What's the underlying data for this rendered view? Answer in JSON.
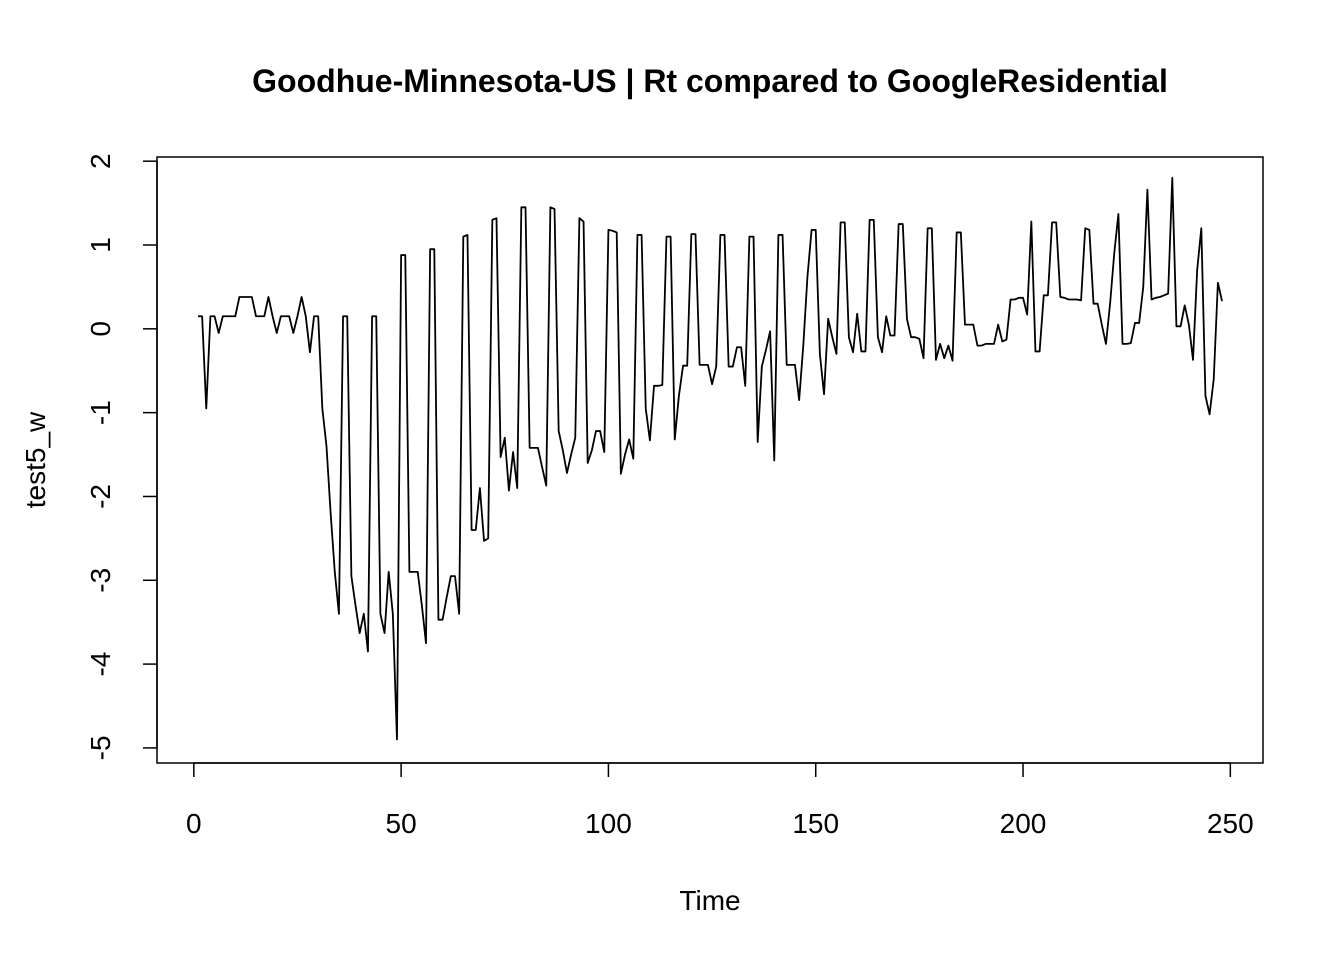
{
  "chart_data": {
    "type": "line",
    "title": "Goodhue-Minnesota-US | Rt compared to GoogleResidential",
    "x_label": "Time",
    "y_label": "test5_w",
    "color": "#000000",
    "x": [
      1,
      2,
      3,
      4,
      5,
      6,
      7,
      8,
      9,
      10,
      11,
      12,
      13,
      14,
      15,
      16,
      17,
      18,
      19,
      20,
      21,
      22,
      23,
      24,
      25,
      26,
      27,
      28,
      29,
      30,
      31,
      32,
      33,
      34,
      35,
      36,
      37,
      38,
      39,
      40,
      41,
      42,
      43,
      44,
      45,
      46,
      47,
      48,
      49,
      50,
      51,
      52,
      53,
      54,
      55,
      56,
      57,
      58,
      59,
      60,
      61,
      62,
      63,
      64,
      65,
      66,
      67,
      68,
      69,
      70,
      71,
      72,
      73,
      74,
      75,
      76,
      77,
      78,
      79,
      80,
      81,
      82,
      83,
      84,
      85,
      86,
      87,
      88,
      89,
      90,
      91,
      92,
      93,
      94,
      95,
      96,
      97,
      98,
      99,
      100,
      101,
      102,
      103,
      104,
      105,
      106,
      107,
      108,
      109,
      110,
      111,
      112,
      113,
      114,
      115,
      116,
      117,
      118,
      119,
      120,
      121,
      122,
      123,
      124,
      125,
      126,
      127,
      128,
      129,
      130,
      131,
      132,
      133,
      134,
      135,
      136,
      137,
      138,
      139,
      140,
      141,
      142,
      143,
      144,
      145,
      146,
      147,
      148,
      149,
      150,
      151,
      152,
      153,
      154,
      155,
      156,
      157,
      158,
      159,
      160,
      161,
      162,
      163,
      164,
      165,
      166,
      167,
      168,
      169,
      170,
      171,
      172,
      173,
      174,
      175,
      176,
      177,
      178,
      179,
      180,
      181,
      182,
      183,
      184,
      185,
      186,
      187,
      188,
      189,
      190,
      191,
      192,
      193,
      194,
      195,
      196,
      197,
      198,
      199,
      200,
      201,
      202,
      203,
      204,
      205,
      206,
      207,
      208,
      209,
      210,
      211,
      212,
      213,
      214,
      215,
      216,
      217,
      218,
      219,
      220,
      221,
      222,
      223,
      224,
      225,
      226,
      227,
      228,
      229,
      230,
      231,
      232,
      233,
      234,
      235,
      236,
      237,
      238,
      239,
      240,
      241,
      242,
      243,
      244,
      245,
      246,
      247,
      248
    ],
    "values": [
      0.15,
      0.15,
      -0.95,
      0.15,
      0.15,
      -0.05,
      0.15,
      0.15,
      0.15,
      0.15,
      0.38,
      0.38,
      0.38,
      0.38,
      0.15,
      0.15,
      0.15,
      0.38,
      0.15,
      -0.05,
      0.15,
      0.15,
      0.15,
      -0.05,
      0.15,
      0.38,
      0.15,
      -0.28,
      0.15,
      0.15,
      -0.95,
      -1.4,
      -2.2,
      -2.9,
      -3.4,
      0.15,
      0.15,
      -2.95,
      -3.3,
      -3.63,
      -3.4,
      -3.85,
      0.15,
      0.15,
      -3.4,
      -3.63,
      -2.9,
      -3.4,
      -4.9,
      0.88,
      0.88,
      -2.9,
      -2.9,
      -2.9,
      -3.3,
      -3.75,
      0.95,
      0.95,
      -3.47,
      -3.47,
      -3.2,
      -2.95,
      -2.95,
      -3.4,
      1.1,
      1.12,
      -2.4,
      -2.4,
      -1.9,
      -2.53,
      -2.5,
      1.3,
      1.32,
      -1.53,
      -1.3,
      -1.93,
      -1.47,
      -1.9,
      1.45,
      1.45,
      -1.42,
      -1.42,
      -1.42,
      -1.65,
      -1.87,
      1.45,
      1.43,
      -1.22,
      -1.45,
      -1.72,
      -1.5,
      -1.3,
      1.32,
      1.28,
      -1.6,
      -1.45,
      -1.22,
      -1.22,
      -1.47,
      1.18,
      1.17,
      1.15,
      -1.73,
      -1.5,
      -1.32,
      -1.55,
      1.12,
      1.12,
      -0.95,
      -1.33,
      -0.68,
      -0.68,
      -0.67,
      1.1,
      1.1,
      -1.32,
      -0.8,
      -0.44,
      -0.44,
      1.13,
      1.13,
      -0.43,
      -0.43,
      -0.43,
      -0.66,
      -0.45,
      1.12,
      1.12,
      -0.45,
      -0.45,
      -0.22,
      -0.22,
      -0.68,
      1.1,
      1.1,
      -1.35,
      -0.45,
      -0.25,
      -0.03,
      -1.57,
      1.12,
      1.12,
      -0.43,
      -0.43,
      -0.43,
      -0.85,
      -0.2,
      0.62,
      1.18,
      1.18,
      -0.3,
      -0.78,
      0.12,
      -0.1,
      -0.3,
      1.27,
      1.27,
      -0.1,
      -0.28,
      0.18,
      -0.27,
      -0.27,
      1.3,
      1.3,
      -0.1,
      -0.28,
      0.15,
      -0.08,
      -0.08,
      1.25,
      1.25,
      0.12,
      -0.1,
      -0.1,
      -0.12,
      -0.35,
      1.2,
      1.2,
      -0.37,
      -0.18,
      -0.35,
      -0.2,
      -0.38,
      1.15,
      1.15,
      0.05,
      0.05,
      0.05,
      -0.2,
      -0.2,
      -0.18,
      -0.18,
      -0.18,
      0.05,
      -0.15,
      -0.13,
      0.35,
      0.35,
      0.37,
      0.37,
      0.17,
      1.28,
      -0.27,
      -0.27,
      0.4,
      0.4,
      1.27,
      1.27,
      0.38,
      0.37,
      0.35,
      0.35,
      0.35,
      0.34,
      1.2,
      1.18,
      0.3,
      0.3,
      0.05,
      -0.18,
      0.3,
      0.9,
      1.37,
      -0.18,
      -0.18,
      -0.17,
      0.07,
      0.07,
      0.5,
      1.66,
      0.35,
      0.37,
      0.38,
      0.4,
      0.42,
      1.8,
      0.03,
      0.03,
      0.28,
      0.05,
      -0.37,
      0.7,
      1.2,
      -0.8,
      -1.02,
      -0.6,
      0.55,
      0.33
    ],
    "xlim": [
      -8.88,
      257.88
    ],
    "ylim": [
      -5.18,
      2.05
    ],
    "xticks": [
      0,
      50,
      100,
      150,
      200,
      250
    ],
    "yticks": [
      -5,
      -4,
      -3,
      -2,
      -1,
      0,
      1,
      2
    ]
  }
}
